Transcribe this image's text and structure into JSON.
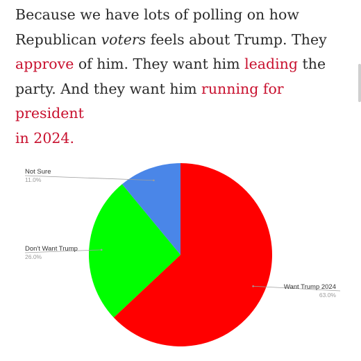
{
  "article": {
    "line1": "Because we have lots of polling on how",
    "line2a": "Republican ",
    "line2b": "voters",
    "line2c": " feels about Trump. They",
    "line3a": "approve",
    "line3b": " of him. They want him ",
    "line3c": "leading",
    "line3d": " the",
    "line4a": "party. And they want him ",
    "line4b": "running for president",
    "line5": "in 2024",
    "line5end": "."
  },
  "colors": {
    "text": "#2b2b2b",
    "link": "#c8102e"
  },
  "chart_data": {
    "type": "pie",
    "slices": [
      {
        "label": "Want Trump 2024",
        "value": 63.0,
        "pct_label": "63.0%",
        "color": "#ff0000"
      },
      {
        "label": "Don't Want Trump",
        "value": 26.0,
        "pct_label": "26.0%",
        "color": "#00ff00"
      },
      {
        "label": "Not Sure",
        "value": 11.0,
        "pct_label": "11.0%",
        "color": "#4a86e8"
      }
    ]
  }
}
